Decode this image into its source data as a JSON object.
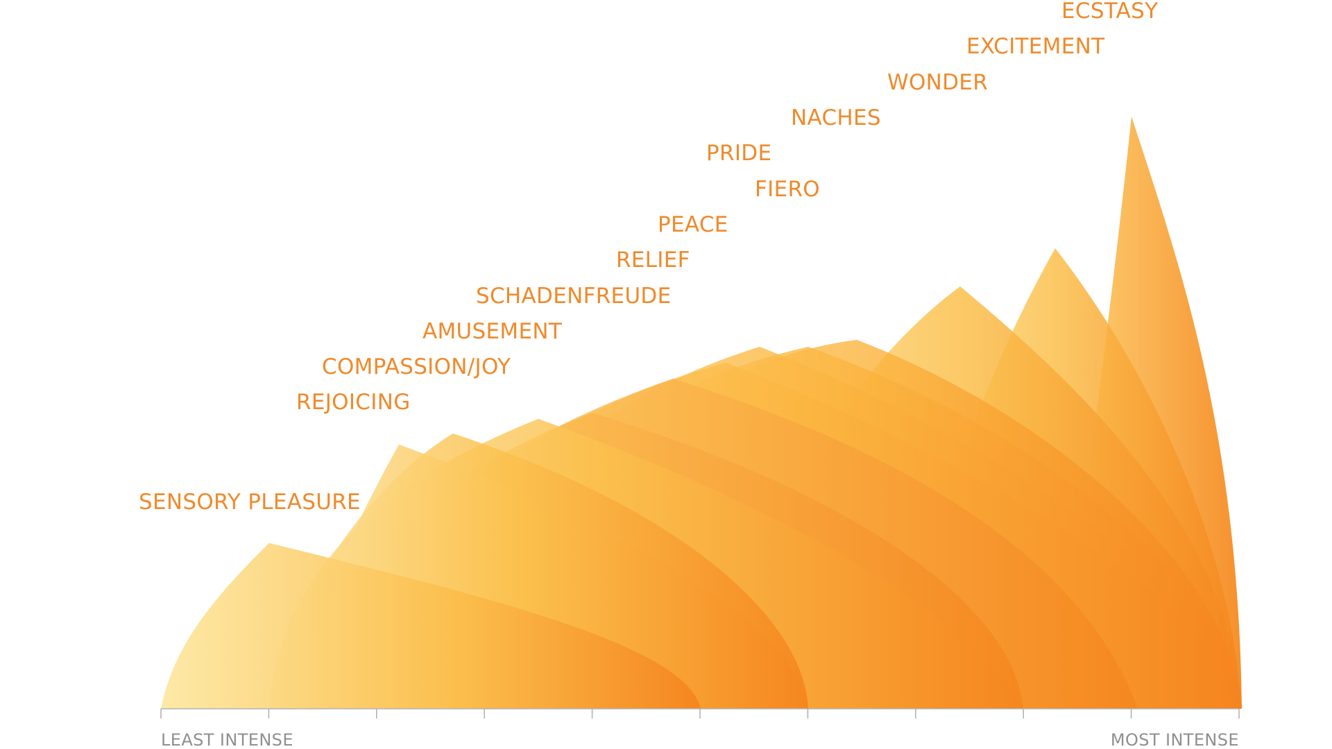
{
  "axis": {
    "left_label": "LEAST INTENSE",
    "right_label": "MOST INTENSE",
    "ticks": 11
  },
  "emotions": [
    "SENSORY PLEASURE",
    "REJOICING",
    "COMPASSION/JOY",
    "AMUSEMENT",
    "SCHADENFREUDE",
    "RELIEF",
    "PEACE",
    "FIERO",
    "PRIDE",
    "NACHES",
    "WONDER",
    "EXCITEMENT",
    "ECSTASY"
  ],
  "colors": {
    "light": "#fde59a",
    "mid": "#fbc24c",
    "dark": "#f5841f",
    "label": "#ef8a2b",
    "axis": "#b3b3b3"
  }
}
